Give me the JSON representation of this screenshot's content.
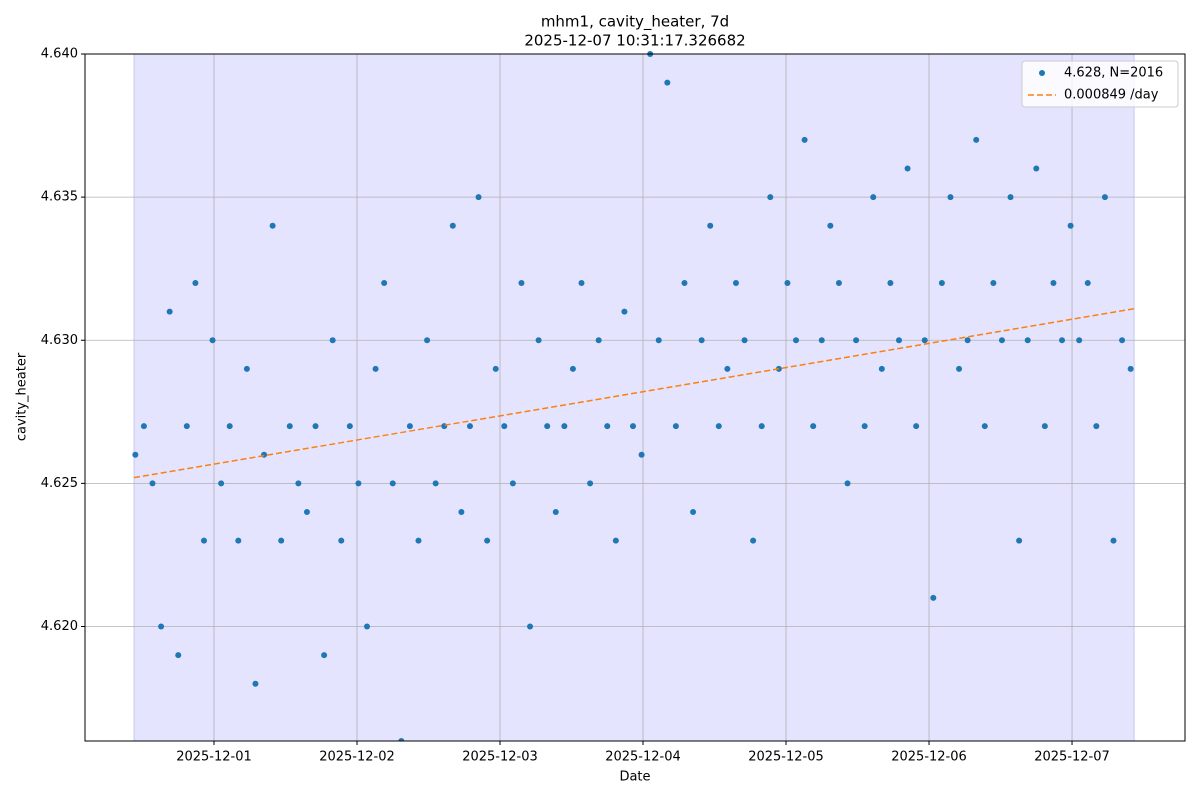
{
  "chart_data": {
    "type": "scatter",
    "title": "mhm1, cavity_heater, 7d",
    "subtitle": "2025-12-07 10:31:17.326682",
    "x_label": "Date",
    "y_label": "cavity_heater",
    "xlim": [
      -0.902,
      6.79
    ],
    "xticks": [
      {
        "value": 0,
        "label": "2025-12-01"
      },
      {
        "value": 1,
        "label": "2025-12-02"
      },
      {
        "value": 2,
        "label": "2025-12-03"
      },
      {
        "value": 3,
        "label": "2025-12-04"
      },
      {
        "value": 4,
        "label": "2025-12-05"
      },
      {
        "value": 5,
        "label": "2025-12-06"
      },
      {
        "value": 6,
        "label": "2025-12-07"
      }
    ],
    "ylim": [
      4.616,
      4.64
    ],
    "yticks": [
      {
        "value": 4.62,
        "label": "4.620"
      },
      {
        "value": 4.625,
        "label": "4.625"
      },
      {
        "value": 4.63,
        "label": "4.630"
      },
      {
        "value": 4.635,
        "label": "4.635"
      },
      {
        "value": 4.64,
        "label": "4.640"
      }
    ],
    "grid": true,
    "legend": "upper right",
    "span": {
      "x": [
        -0.559,
        6.434
      ],
      "color": "#e4e4ff"
    },
    "series": [
      {
        "name": "4.628, N=2016",
        "color": "#1f77b4",
        "x": [
          -0.55,
          -0.49,
          -0.43,
          -0.37,
          -0.31,
          -0.25,
          -0.19,
          -0.13,
          -0.07,
          -0.01,
          0.05,
          0.11,
          0.17,
          0.23,
          0.29,
          0.35,
          0.41,
          0.47,
          0.53,
          0.59,
          0.65,
          0.71,
          0.77,
          0.83,
          0.89,
          0.95,
          1.01,
          1.07,
          1.13,
          1.19,
          1.25,
          1.31,
          1.37,
          1.43,
          1.49,
          1.55,
          1.61,
          1.67,
          1.73,
          1.79,
          1.85,
          1.91,
          1.97,
          2.03,
          2.09,
          2.15,
          2.21,
          2.27,
          2.33,
          2.39,
          2.45,
          2.51,
          2.57,
          2.63,
          2.69,
          2.75,
          2.81,
          2.87,
          2.93,
          2.99,
          3.05,
          3.11,
          3.17,
          3.23,
          3.29,
          3.35,
          3.41,
          3.47,
          3.53,
          3.59,
          3.65,
          3.71,
          3.77,
          3.83,
          3.89,
          3.95,
          4.01,
          4.07,
          4.13,
          4.19,
          4.25,
          4.31,
          4.37,
          4.43,
          4.49,
          4.55,
          4.61,
          4.67,
          4.73,
          4.79,
          4.85,
          4.91,
          4.97,
          5.03,
          5.09,
          5.15,
          5.21,
          5.27,
          5.33,
          5.39,
          5.45,
          5.51,
          5.57,
          5.63,
          5.69,
          5.75,
          5.81,
          5.87,
          5.93,
          5.99,
          6.05,
          6.11,
          6.17,
          6.23,
          6.29,
          6.35,
          6.41
        ],
        "values": [
          4.626,
          4.627,
          4.625,
          4.62,
          4.631,
          4.619,
          4.627,
          4.632,
          4.623,
          4.63,
          4.625,
          4.627,
          4.623,
          4.629,
          4.618,
          4.626,
          4.634,
          4.623,
          4.627,
          4.625,
          4.624,
          4.627,
          4.619,
          4.63,
          4.623,
          4.627,
          4.625,
          4.62,
          4.629,
          4.632,
          4.625,
          4.616,
          4.627,
          4.623,
          4.63,
          4.625,
          4.627,
          4.634,
          4.624,
          4.627,
          4.635,
          4.623,
          4.629,
          4.627,
          4.625,
          4.632,
          4.62,
          4.63,
          4.627,
          4.624,
          4.627,
          4.629,
          4.632,
          4.625,
          4.63,
          4.627,
          4.623,
          4.631,
          4.627,
          4.626,
          4.64,
          4.63,
          4.639,
          4.627,
          4.632,
          4.624,
          4.63,
          4.634,
          4.627,
          4.629,
          4.632,
          4.63,
          4.623,
          4.627,
          4.635,
          4.629,
          4.632,
          4.63,
          4.637,
          4.627,
          4.63,
          4.634,
          4.632,
          4.625,
          4.63,
          4.627,
          4.635,
          4.629,
          4.632,
          4.63,
          4.636,
          4.627,
          4.63,
          4.621,
          4.632,
          4.635,
          4.629,
          4.63,
          4.637,
          4.627,
          4.632,
          4.63,
          4.635,
          4.623,
          4.63,
          4.636,
          4.627,
          4.632,
          4.63,
          4.634,
          4.63,
          4.632,
          4.627,
          4.635,
          4.623,
          4.63,
          4.629
        ]
      },
      {
        "name": "0.000849 /day",
        "color": "#ff7f0e",
        "line_style": "dashed",
        "x": [
          -0.559,
          6.434
        ],
        "values": [
          4.6252,
          4.6311
        ]
      }
    ]
  }
}
